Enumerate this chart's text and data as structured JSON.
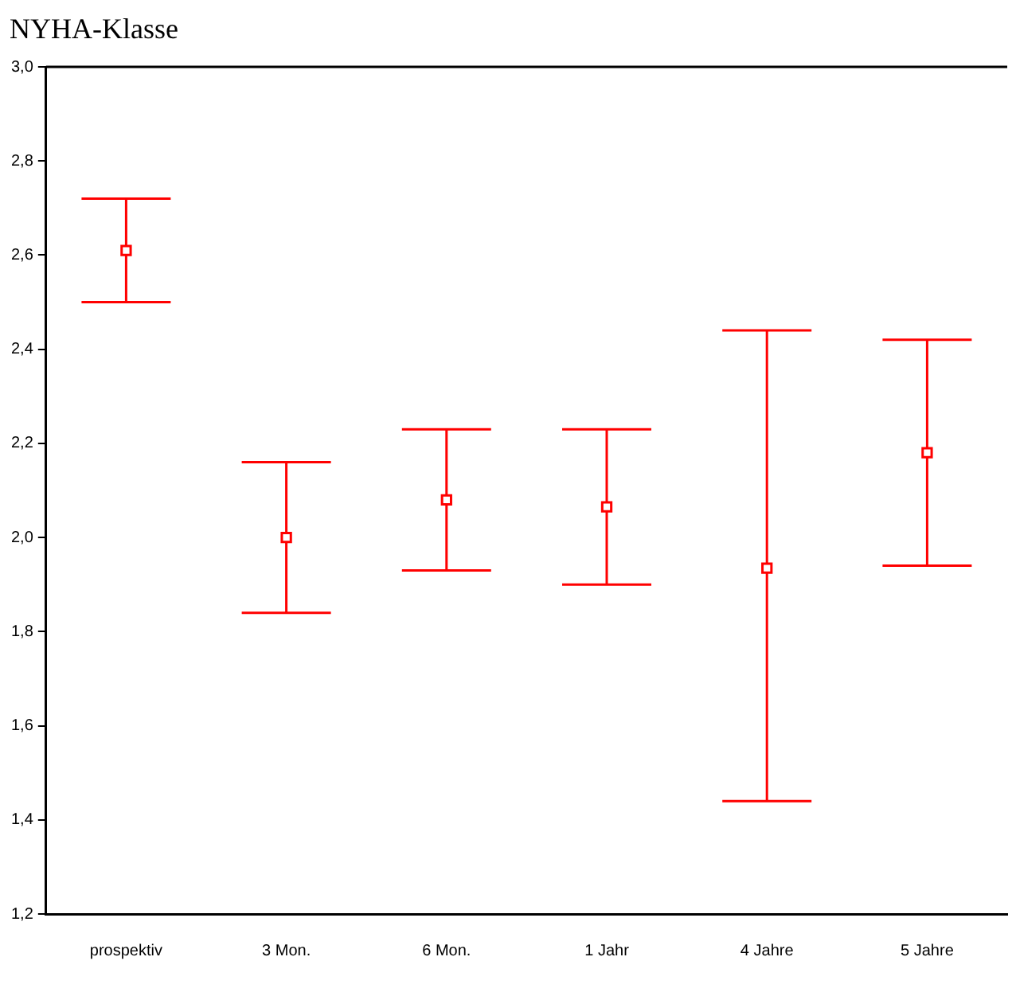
{
  "chart_data": {
    "type": "scatter",
    "title": "NYHA-Klasse",
    "categories": [
      "prospektiv",
      "3 Mon.",
      "6 Mon.",
      "1 Jahr",
      "4 Jahre",
      "5 Jahre"
    ],
    "color": "#ff0000",
    "values": [
      2.61,
      2.0,
      2.08,
      2.065,
      1.935,
      2.18
    ],
    "errors": [
      [
        2.5,
        2.72
      ],
      [
        1.84,
        2.16
      ],
      [
        1.93,
        2.23
      ],
      [
        1.9,
        2.23
      ],
      [
        1.44,
        2.44
      ],
      [
        1.94,
        2.42
      ]
    ],
    "ylim": [
      1.2,
      3.0
    ],
    "yticks": [
      {
        "value": 1.2,
        "label": "1,2"
      },
      {
        "value": 1.4,
        "label": "1,4"
      },
      {
        "value": 1.6,
        "label": "1,6"
      },
      {
        "value": 1.8,
        "label": "1,8"
      },
      {
        "value": 2.0,
        "label": "2,0"
      },
      {
        "value": 2.2,
        "label": "2,2"
      },
      {
        "value": 2.4,
        "label": "2,4"
      },
      {
        "value": 2.6,
        "label": "2,6"
      },
      {
        "value": 2.8,
        "label": "2,8"
      },
      {
        "value": 3.0,
        "label": "3,0"
      }
    ],
    "grid": false,
    "legend": false,
    "marker": "square"
  }
}
